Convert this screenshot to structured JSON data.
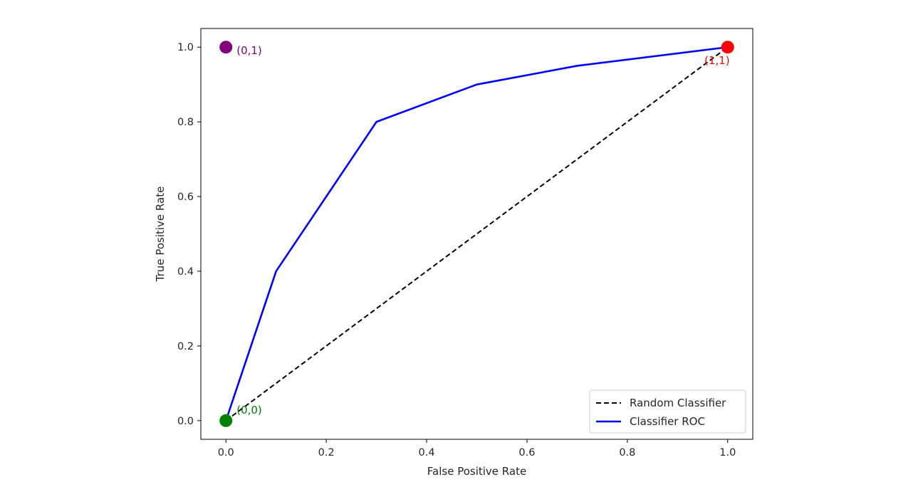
{
  "chart_data": {
    "type": "line",
    "title": "",
    "xlabel": "False Positive Rate",
    "ylabel": "True Positive Rate",
    "xlim": [
      -0.05,
      1.05
    ],
    "ylim": [
      -0.05,
      1.05
    ],
    "xticks": [
      0.0,
      0.2,
      0.4,
      0.6,
      0.8,
      1.0
    ],
    "yticks": [
      0.0,
      0.2,
      0.4,
      0.6,
      0.8,
      1.0
    ],
    "xtick_labels": [
      "0.0",
      "0.2",
      "0.4",
      "0.6",
      "0.8",
      "1.0"
    ],
    "ytick_labels": [
      "0.0",
      "0.2",
      "0.4",
      "0.6",
      "0.8",
      "1.0"
    ],
    "grid": false,
    "legend_position": "bottom-right",
    "series": [
      {
        "name": "Random Classifier",
        "style": "dashed",
        "color": "#000000",
        "x": [
          0.0,
          1.0
        ],
        "y": [
          0.0,
          1.0
        ]
      },
      {
        "name": "Classifier ROC",
        "style": "solid",
        "color": "#0000ff",
        "x": [
          0.0,
          0.1,
          0.3,
          0.5,
          0.7,
          1.0
        ],
        "y": [
          0.0,
          0.4,
          0.8,
          0.9,
          0.95,
          1.0
        ]
      }
    ],
    "points": [
      {
        "name": "point-0-0",
        "x": 0.0,
        "y": 0.0,
        "color": "#008000",
        "label": "(0,0)"
      },
      {
        "name": "point-0-1",
        "x": 0.0,
        "y": 1.0,
        "color": "#800080",
        "label": "(0,1)"
      },
      {
        "name": "point-1-1",
        "x": 1.0,
        "y": 1.0,
        "color": "#ff0000",
        "label": "(1,1)"
      }
    ]
  }
}
